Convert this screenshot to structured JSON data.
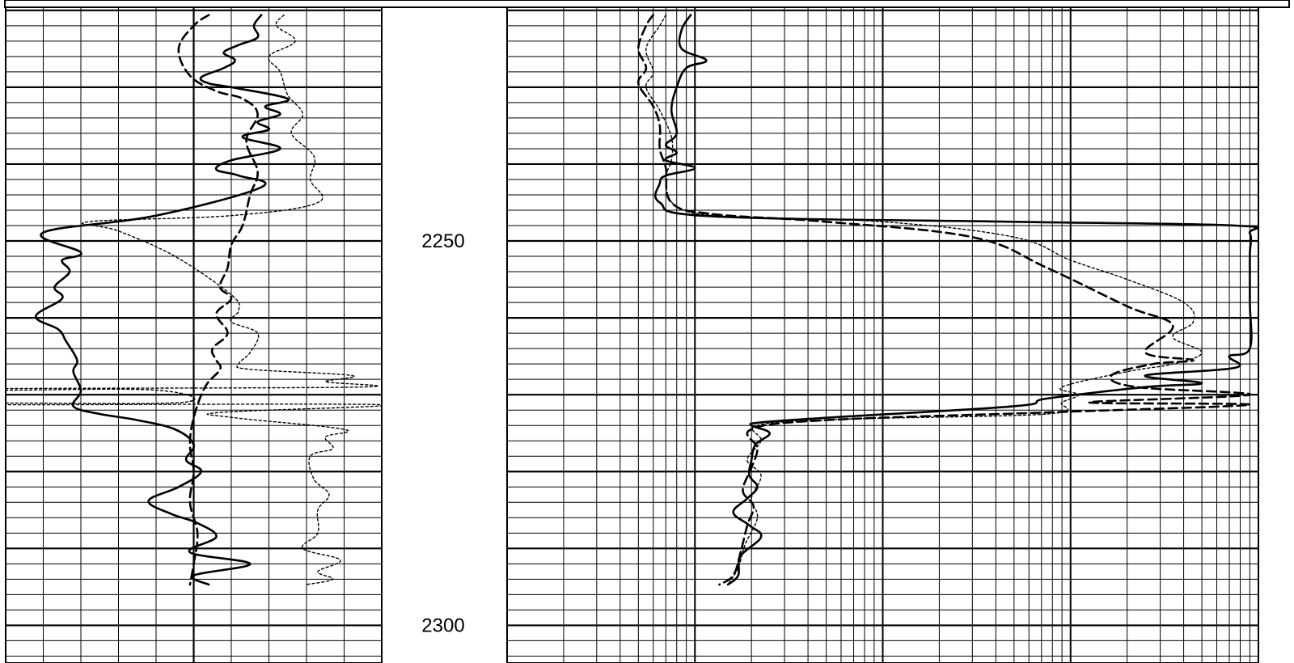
{
  "colors": {
    "background": "#ffffff",
    "grid": "#000000",
    "curve": "#000000"
  },
  "chart_data": {
    "type": "line",
    "title": "",
    "depth_axis": {
      "range": [
        2219.6,
        2304.9
      ],
      "labeled_ticks": [
        2250,
        2300
      ],
      "major_every": 10,
      "minor_every": 2
    },
    "tracks": [
      {
        "id": "left-track",
        "scale": "linear",
        "x_range": [
          0,
          10
        ],
        "series": [
          {
            "id": "solid",
            "style": "solid",
            "points": [
              [
                6.8,
                2220.6
              ],
              [
                6.6,
                2222.0
              ],
              [
                6.7,
                2223.5
              ],
              [
                6.2,
                2224.5
              ],
              [
                5.8,
                2225.5
              ],
              [
                6.1,
                2226.5
              ],
              [
                5.8,
                2227.5
              ],
              [
                5.2,
                2228.7
              ],
              [
                5.4,
                2229.5
              ],
              [
                6.0,
                2230.0
              ],
              [
                7.5,
                2231.5
              ],
              [
                6.9,
                2232.5
              ],
              [
                7.3,
                2233.5
              ],
              [
                6.7,
                2234.5
              ],
              [
                7.0,
                2235.5
              ],
              [
                6.3,
                2236.5
              ],
              [
                7.3,
                2238.0
              ],
              [
                6.0,
                2239.5
              ],
              [
                5.6,
                2240.7
              ],
              [
                6.2,
                2241.5
              ],
              [
                6.8,
                2243.0
              ],
              [
                4.0,
                2246.7
              ],
              [
                1.0,
                2248.9
              ],
              [
                2.0,
                2251.5
              ],
              [
                1.5,
                2252.5
              ],
              [
                1.7,
                2254.0
              ],
              [
                1.3,
                2256.0
              ],
              [
                1.5,
                2257.5
              ],
              [
                0.8,
                2259.8
              ],
              [
                1.4,
                2261.5
              ],
              [
                1.6,
                2263.0
              ],
              [
                1.9,
                2265.5
              ],
              [
                1.8,
                2267.0
              ],
              [
                2.0,
                2269.5
              ],
              [
                1.8,
                2271.5
              ],
              [
                2.5,
                2272.5
              ],
              [
                3.5,
                2273.3
              ],
              [
                4.5,
                2274.5
              ],
              [
                5.0,
                2276.5
              ],
              [
                4.8,
                2278.5
              ],
              [
                5.2,
                2280.0
              ],
              [
                4.6,
                2282.0
              ],
              [
                3.8,
                2283.8
              ],
              [
                4.4,
                2285.5
              ],
              [
                5.1,
                2286.7
              ],
              [
                5.6,
                2288.5
              ],
              [
                4.9,
                2290.5
              ],
              [
                6.5,
                2292.0
              ],
              [
                5.0,
                2293.5
              ],
              [
                5.4,
                2294.7
              ]
            ]
          },
          {
            "id": "dashed",
            "style": "dashed",
            "points": [
              [
                5.4,
                2220.6
              ],
              [
                5.0,
                2222.0
              ],
              [
                4.6,
                2225.0
              ],
              [
                4.9,
                2228.5
              ],
              [
                5.6,
                2230.5
              ],
              [
                6.3,
                2231.5
              ],
              [
                6.7,
                2233.5
              ],
              [
                6.4,
                2237.0
              ],
              [
                6.7,
                2241.0
              ],
              [
                6.5,
                2244.0
              ],
              [
                6.3,
                2248.0
              ],
              [
                6.0,
                2250.5
              ],
              [
                5.9,
                2253.5
              ],
              [
                5.7,
                2256.0
              ],
              [
                6.0,
                2257.5
              ],
              [
                5.6,
                2259.5
              ],
              [
                5.9,
                2262.0
              ],
              [
                5.5,
                2264.0
              ],
              [
                5.6,
                2265.5
              ],
              [
                5.7,
                2266.7
              ],
              [
                5.3,
                2269.0
              ],
              [
                5.0,
                2273.0
              ],
              [
                4.9,
                2276.5
              ],
              [
                5.0,
                2280.0
              ],
              [
                4.9,
                2284.0
              ],
              [
                5.1,
                2288.0
              ],
              [
                5.0,
                2292.0
              ],
              [
                4.9,
                2294.7
              ]
            ]
          },
          {
            "id": "dotted",
            "style": "dotted",
            "points": [
              [
                7.4,
                2220.6
              ],
              [
                7.2,
                2222.0
              ],
              [
                7.7,
                2224.0
              ],
              [
                7.0,
                2226.0
              ],
              [
                7.3,
                2228.0
              ],
              [
                7.5,
                2231.0
              ],
              [
                7.9,
                2233.5
              ],
              [
                7.6,
                2236.0
              ],
              [
                8.2,
                2239.0
              ],
              [
                8.1,
                2242.0
              ],
              [
                8.3,
                2245.0
              ],
              [
                6.0,
                2246.7
              ],
              [
                2.2,
                2247.5
              ],
              [
                3.0,
                2248.7
              ],
              [
                4.5,
                2252.0
              ],
              [
                6.0,
                2257.0
              ],
              [
                6.2,
                2259.0
              ],
              [
                6.0,
                2260.5
              ],
              [
                6.7,
                2262.0
              ],
              [
                6.5,
                2264.5
              ],
              [
                6.2,
                2266.0
              ],
              [
                6.5,
                2266.7
              ],
              [
                9.2,
                2267.5
              ],
              [
                8.5,
                2268.3
              ],
              [
                9.4,
                2269.0
              ],
              [
                0.0,
                2269.2
              ],
              [
                0.0,
                2269.4
              ],
              [
                4.0,
                2269.4
              ],
              [
                4.7,
                2271.0
              ],
              [
                0.0,
                2271.1
              ],
              [
                0.0,
                2271.3
              ],
              [
                10.0,
                2271.3
              ],
              [
                5.7,
                2272.3
              ],
              [
                6.1,
                2273.0
              ],
              [
                9.0,
                2274.5
              ],
              [
                8.5,
                2275.5
              ],
              [
                8.7,
                2277.0
              ],
              [
                8.1,
                2278.0
              ],
              [
                8.2,
                2281.0
              ],
              [
                8.6,
                2283.0
              ],
              [
                8.3,
                2285.0
              ],
              [
                8.3,
                2288.0
              ],
              [
                7.9,
                2290.0
              ],
              [
                8.9,
                2291.5
              ],
              [
                8.3,
                2293.0
              ],
              [
                8.7,
                2294.0
              ],
              [
                8.0,
                2294.7
              ]
            ]
          }
        ]
      },
      {
        "id": "right-track",
        "scale": "log",
        "x_range": [
          0.2,
          2000
        ],
        "series": [
          {
            "id": "solid",
            "style": "solid",
            "points": [
              [
                1.9,
                2220.6
              ],
              [
                1.7,
                2222.5
              ],
              [
                1.7,
                2225.0
              ],
              [
                2.3,
                2226.5
              ],
              [
                1.8,
                2227.5
              ],
              [
                1.6,
                2230.0
              ],
              [
                1.5,
                2233.0
              ],
              [
                1.6,
                2236.0
              ],
              [
                1.4,
                2237.5
              ],
              [
                1.6,
                2238.5
              ],
              [
                1.4,
                2239.5
              ],
              [
                2.0,
                2240.5
              ],
              [
                1.4,
                2241.5
              ],
              [
                1.3,
                2242.5
              ],
              [
                1.3,
                2245.0
              ],
              [
                2.5,
                2246.8
              ],
              [
                100,
                2247.5
              ],
              [
                1500,
                2248.0
              ],
              [
                1800,
                2249.0
              ],
              [
                1800,
                2252.0
              ],
              [
                1800,
                2258.0
              ],
              [
                1800,
                2264.0
              ],
              [
                1400,
                2265.0
              ],
              [
                1500,
                2266.5
              ],
              [
                500,
                2267.5
              ],
              [
                1000,
                2268.5
              ],
              [
                500,
                2269.0
              ],
              [
                150,
                2270.5
              ],
              [
                100,
                2271.5
              ],
              [
                10,
                2273.0
              ],
              [
                4.5,
                2273.6
              ],
              [
                4.0,
                2274.0
              ],
              [
                5.0,
                2275.0
              ],
              [
                4.2,
                2276.5
              ],
              [
                4.0,
                2278.5
              ],
              [
                3.9,
                2280.5
              ],
              [
                4.3,
                2282.0
              ],
              [
                3.8,
                2283.5
              ],
              [
                3.2,
                2285.3
              ],
              [
                3.9,
                2287.0
              ],
              [
                4.5,
                2288.5
              ],
              [
                3.5,
                2291.0
              ],
              [
                3.4,
                2293.5
              ],
              [
                3.0,
                2294.7
              ]
            ]
          },
          {
            "id": "dashed",
            "style": "dashed",
            "points": [
              [
                1.2,
                2220.6
              ],
              [
                1.1,
                2222.0
              ],
              [
                1.0,
                2225.0
              ],
              [
                1.1,
                2227.5
              ],
              [
                1.0,
                2229.5
              ],
              [
                1.2,
                2232.5
              ],
              [
                1.3,
                2235.0
              ],
              [
                1.3,
                2238.0
              ],
              [
                1.4,
                2240.5
              ],
              [
                1.5,
                2245.0
              ],
              [
                2.5,
                2246.5
              ],
              [
                10,
                2247.5
              ],
              [
                60,
                2249.5
              ],
              [
                150,
                2253.5
              ],
              [
                400,
                2258.5
              ],
              [
                700,
                2261.0
              ],
              [
                500,
                2264.5
              ],
              [
                900,
                2265.5
              ],
              [
                550,
                2266.0
              ],
              [
                330,
                2267.5
              ],
              [
                450,
                2269.0
              ],
              [
                1800,
                2270.0
              ],
              [
                250,
                2271.0
              ],
              [
                1800,
                2271.3
              ],
              [
                150,
                2272.3
              ],
              [
                10,
                2273.3
              ],
              [
                4.0,
                2274.5
              ],
              [
                4.3,
                2277.0
              ],
              [
                4.0,
                2279.5
              ],
              [
                3.6,
                2282.5
              ],
              [
                4.1,
                2284.5
              ],
              [
                3.8,
                2287.0
              ],
              [
                3.5,
                2290.5
              ],
              [
                3.2,
                2293.5
              ],
              [
                2.7,
                2294.7
              ]
            ]
          },
          {
            "id": "dotted",
            "style": "dotted",
            "points": [
              [
                1.4,
                2220.6
              ],
              [
                1.3,
                2222.0
              ],
              [
                1.1,
                2225.0
              ],
              [
                1.2,
                2228.0
              ],
              [
                1.1,
                2230.0
              ],
              [
                1.3,
                2233.0
              ],
              [
                1.5,
                2236.5
              ],
              [
                1.5,
                2239.5
              ],
              [
                1.4,
                2242.0
              ],
              [
                1.6,
                2245.5
              ],
              [
                3.0,
                2246.8
              ],
              [
                20,
                2247.5
              ],
              [
                100,
                2249.5
              ],
              [
                200,
                2252.5
              ],
              [
                400,
                2255.0
              ],
              [
                800,
                2258.0
              ],
              [
                900,
                2260.5
              ],
              [
                700,
                2262.5
              ],
              [
                1000,
                2264.5
              ],
              [
                700,
                2266.0
              ],
              [
                400,
                2267.0
              ],
              [
                180,
                2269.0
              ],
              [
                220,
                2270.0
              ],
              [
                180,
                2271.0
              ],
              [
                150,
                2272.5
              ],
              [
                12,
                2273.2
              ],
              [
                4.3,
                2274.0
              ],
              [
                4.5,
                2276.0
              ],
              [
                3.8,
                2278.5
              ],
              [
                4.5,
                2280.5
              ],
              [
                4.0,
                2283.5
              ],
              [
                4.3,
                2286.0
              ],
              [
                3.7,
                2289.5
              ],
              [
                3.4,
                2292.5
              ],
              [
                3.0,
                2294.7
              ]
            ]
          }
        ]
      }
    ]
  }
}
